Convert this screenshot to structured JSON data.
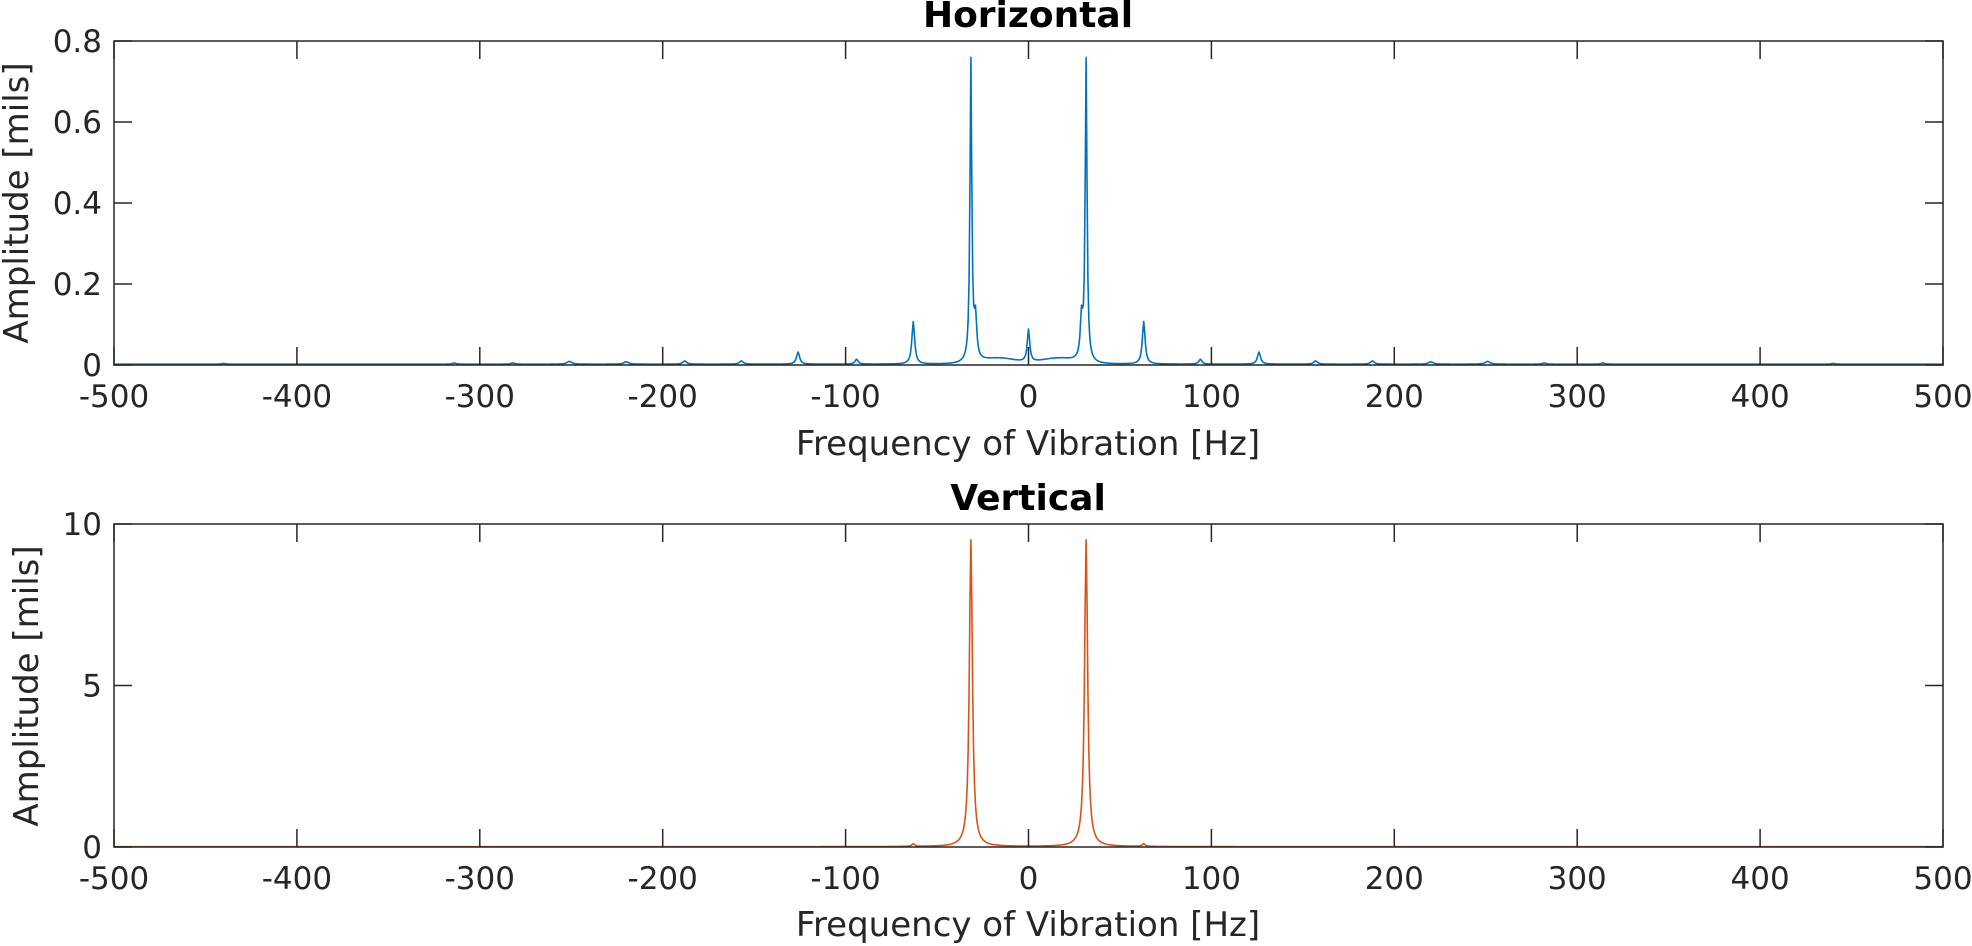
{
  "chart_data": [
    {
      "type": "line",
      "title": "Horizontal",
      "xlabel": "Frequency of Vibration [Hz]",
      "ylabel": "Amplitude [mils]",
      "xlim": [
        -500,
        500
      ],
      "ylim": [
        0,
        0.8
      ],
      "xticks": [
        -500,
        -400,
        -300,
        -200,
        -100,
        0,
        100,
        200,
        300,
        400,
        500
      ],
      "xtick_labels": [
        "-500",
        "-400",
        "-300",
        "-200",
        "-100",
        "0",
        "100",
        "200",
        "300",
        "400",
        "500"
      ],
      "yticks": [
        0,
        0.2,
        0.4,
        0.6,
        0.8
      ],
      "ytick_labels": [
        "0",
        "0.2",
        "0.4",
        "0.6",
        "0.8"
      ],
      "grid": false,
      "color": "#0072BD",
      "series": [
        {
          "baseline": 0.002,
          "peaks": [
            {
              "x": -440,
              "y": 0.002,
              "w": 1.2
            },
            {
              "x": -314,
              "y": 0.003,
              "w": 1.2
            },
            {
              "x": -282,
              "y": 0.003,
              "w": 1.2
            },
            {
              "x": -251,
              "y": 0.007,
              "w": 1.5
            },
            {
              "x": -220,
              "y": 0.006,
              "w": 1.5
            },
            {
              "x": -188,
              "y": 0.008,
              "w": 1.2
            },
            {
              "x": -157,
              "y": 0.008,
              "w": 1.2
            },
            {
              "x": -126,
              "y": 0.03,
              "w": 1.0
            },
            {
              "x": -94,
              "y": 0.012,
              "w": 1.0
            },
            {
              "x": -63,
              "y": 0.105,
              "w": 0.9
            },
            {
              "x": -31.5,
              "y": 0.745,
              "w": 0.6
            },
            {
              "x": -29,
              "y": 0.1,
              "w": 0.8
            },
            {
              "x": 0,
              "y": 0.08,
              "w": 0.8
            },
            {
              "x": 29,
              "y": 0.1,
              "w": 0.8
            },
            {
              "x": 31.5,
              "y": 0.745,
              "w": 0.6
            },
            {
              "x": 63,
              "y": 0.105,
              "w": 0.9
            },
            {
              "x": 94,
              "y": 0.012,
              "w": 1.0
            },
            {
              "x": 126,
              "y": 0.03,
              "w": 1.0
            },
            {
              "x": 157,
              "y": 0.008,
              "w": 1.2
            },
            {
              "x": 188,
              "y": 0.008,
              "w": 1.2
            },
            {
              "x": 220,
              "y": 0.006,
              "w": 1.5
            },
            {
              "x": 251,
              "y": 0.007,
              "w": 1.5
            },
            {
              "x": 282,
              "y": 0.003,
              "w": 1.2
            },
            {
              "x": 314,
              "y": 0.003,
              "w": 1.2
            },
            {
              "x": 440,
              "y": 0.002,
              "w": 1.2
            }
          ],
          "humps": [
            {
              "x": -16,
              "y": 0.014,
              "w": 13
            },
            {
              "x": 16,
              "y": 0.014,
              "w": 13
            }
          ]
        }
      ]
    },
    {
      "type": "line",
      "title": "Vertical",
      "xlabel": "Frequency of Vibration [Hz]",
      "ylabel": "Amplitude [mils]",
      "xlim": [
        -500,
        500
      ],
      "ylim": [
        0,
        10
      ],
      "xticks": [
        -500,
        -400,
        -300,
        -200,
        -100,
        0,
        100,
        200,
        300,
        400,
        500
      ],
      "xtick_labels": [
        "-500",
        "-400",
        "-300",
        "-200",
        "-100",
        "0",
        "100",
        "200",
        "300",
        "400",
        "500"
      ],
      "yticks": [
        0,
        5,
        10
      ],
      "ytick_labels": [
        "0",
        "5",
        "10"
      ],
      "grid": false,
      "color": "#D95319",
      "series": [
        {
          "baseline": 0.01,
          "peaks": [
            {
              "x": -31.5,
              "y": 9.5,
              "w": 1.0
            },
            {
              "x": 31.5,
              "y": 9.5,
              "w": 1.0
            },
            {
              "x": -63,
              "y": 0.08,
              "w": 1.0
            },
            {
              "x": 63,
              "y": 0.08,
              "w": 1.0
            }
          ],
          "humps": []
        }
      ]
    }
  ]
}
